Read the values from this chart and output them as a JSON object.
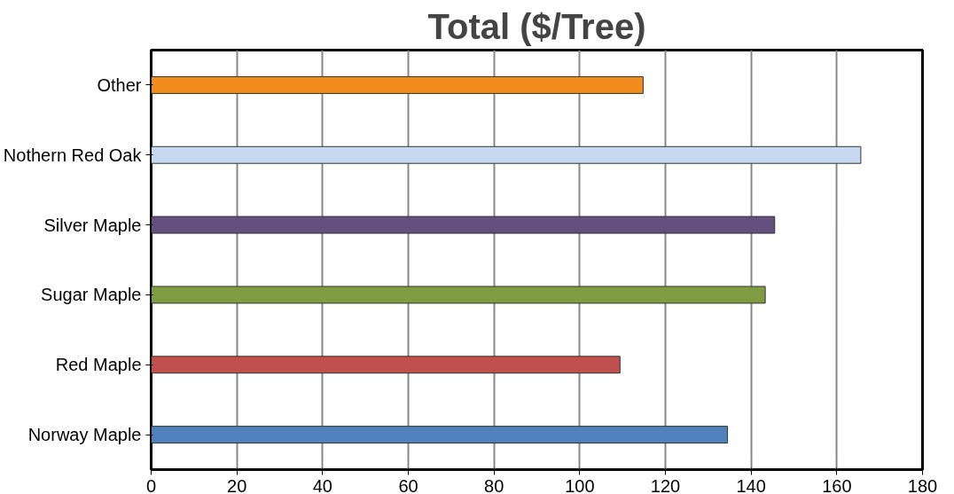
{
  "chart_data": {
    "type": "bar",
    "orientation": "horizontal",
    "title": "Total ($/Tree)",
    "categories": [
      "Other",
      "Nothern Red Oak",
      "Silver Maple",
      "Sugar Maple",
      "Red Maple",
      "Norway Maple"
    ],
    "values": [
      114.8,
      165.6,
      145.5,
      143.3,
      109.4,
      134.5
    ],
    "colors": [
      "#f28c1e",
      "#c6d9f0",
      "#64507f",
      "#7f9c42",
      "#c0504d",
      "#4f81bd"
    ],
    "xlim": [
      0,
      180
    ],
    "xticks": [
      0,
      20,
      40,
      60,
      80,
      100,
      120,
      140,
      160,
      180
    ],
    "grid": "x"
  }
}
